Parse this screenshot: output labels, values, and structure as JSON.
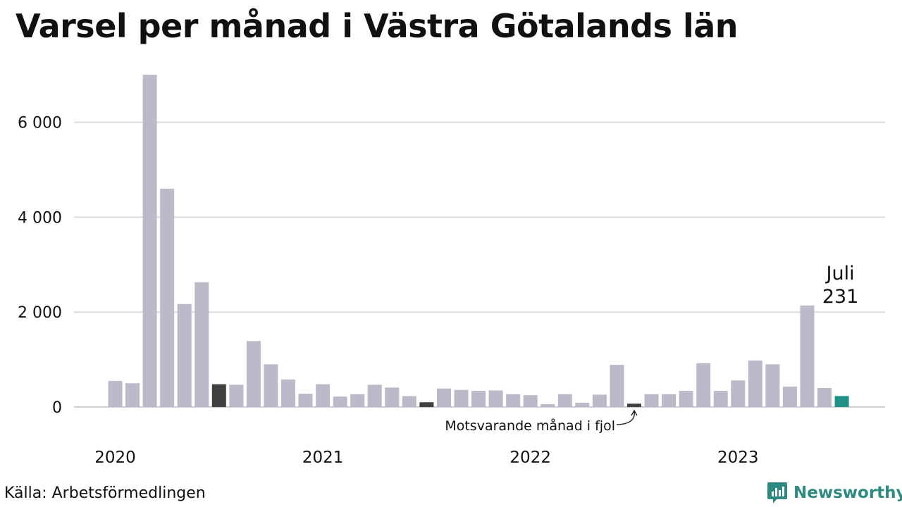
{
  "title": "Varsel per månad i Västra Götalands län",
  "source": "Källa: Arbetsförmedlingen",
  "brand": "Newsworthy",
  "colors": {
    "bar": "#bcbac8",
    "comparison": "#404040",
    "current": "#1f9085",
    "grid": "#dcdce2",
    "brand": "#2e8a80"
  },
  "chart_data": {
    "type": "bar",
    "title": "Varsel per månad i Västra Götalands län",
    "xlabel": "",
    "ylabel": "",
    "ylim": [
      0,
      7000
    ],
    "yticks": [
      0,
      2000,
      4000,
      6000
    ],
    "ytick_labels": [
      "0",
      "2 000",
      "4 000",
      "6 000"
    ],
    "year_labels": [
      {
        "label": "2020",
        "index": 0
      },
      {
        "label": "2021",
        "index": 12
      },
      {
        "label": "2022",
        "index": 24
      },
      {
        "label": "2023",
        "index": 36
      }
    ],
    "values": [
      550,
      500,
      7000,
      4600,
      2170,
      2630,
      480,
      470,
      1390,
      900,
      580,
      280,
      480,
      220,
      270,
      470,
      410,
      230,
      100,
      390,
      360,
      340,
      350,
      270,
      250,
      60,
      270,
      90,
      260,
      890,
      70,
      270,
      270,
      340,
      920,
      340,
      560,
      980,
      900,
      430,
      2140,
      400,
      231
    ],
    "highlights": {
      "comparison": [
        6,
        18,
        30
      ],
      "current": 42
    },
    "current_label": {
      "month": "Juli",
      "value": "231"
    },
    "comparison_annotation": "Motsvarande månad i fjol",
    "grid": true
  }
}
